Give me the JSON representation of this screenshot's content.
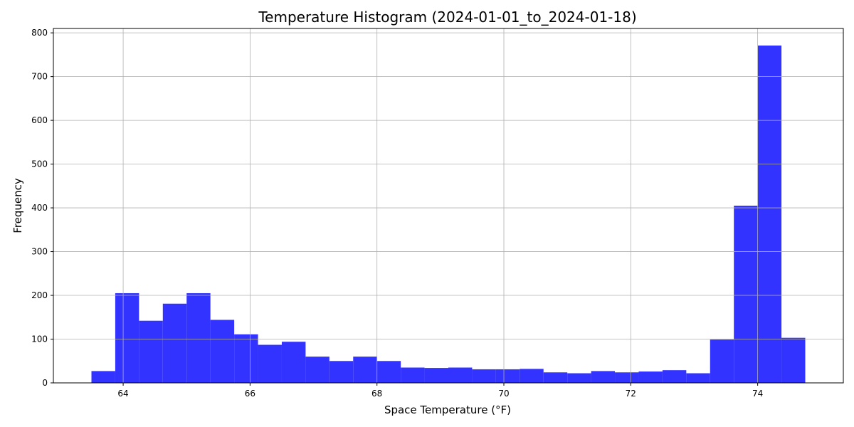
{
  "chart_data": {
    "type": "bar",
    "title": "Temperature Histogram (2024-01-01_to_2024-01-18)",
    "xlabel": "Space Temperature (°F)",
    "ylabel": "Frequency",
    "xlim": [
      62.9,
      75.35
    ],
    "ylim": [
      0,
      810
    ],
    "x_ticks": [
      64,
      66,
      68,
      70,
      72,
      74
    ],
    "y_ticks": [
      0,
      100,
      200,
      300,
      400,
      500,
      600,
      700,
      800
    ],
    "grid": true,
    "bar_color": "#3333ff",
    "bins": {
      "start": 63.5,
      "width": 0.375,
      "counts": [
        27,
        205,
        142,
        181,
        205,
        144,
        111,
        87,
        94,
        60,
        50,
        60,
        50,
        35,
        34,
        35,
        31,
        31,
        32,
        24,
        22,
        27,
        24,
        26,
        29,
        22,
        99,
        405,
        771,
        103
      ]
    }
  }
}
